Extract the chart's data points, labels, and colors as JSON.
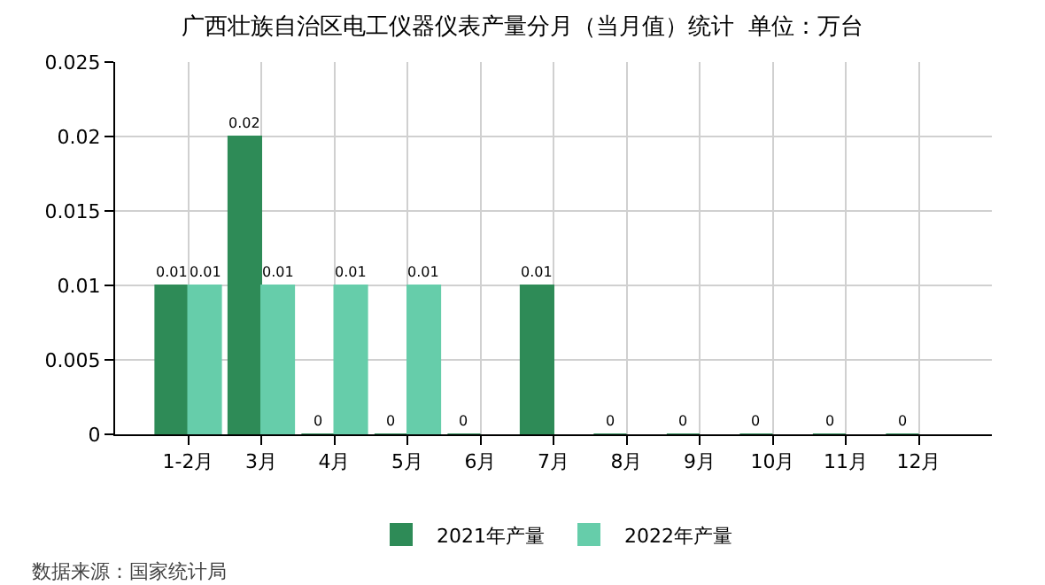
{
  "chart_data": {
    "type": "bar",
    "title": "广西壮族自治区电工仪器仪表产量分月（当月值）统计  单位：万台",
    "categories": [
      "1-2月",
      "3月",
      "4月",
      "5月",
      "6月",
      "7月",
      "8月",
      "9月",
      "10月",
      "11月",
      "12月"
    ],
    "series": [
      {
        "name": "2021年产量",
        "color": "#2e8b57",
        "values": [
          0.01,
          0.02,
          0,
          0,
          0,
          0.01,
          0,
          0,
          0,
          0,
          0
        ]
      },
      {
        "name": "2022年产量",
        "color": "#66cdaa",
        "values": [
          0.01,
          0.01,
          0.01,
          0.01,
          null,
          null,
          null,
          null,
          null,
          null,
          null
        ]
      }
    ],
    "ylim": [
      0,
      0.025
    ],
    "yticks": [
      0,
      0.005,
      0.01,
      0.015,
      0.02,
      0.025
    ],
    "grid": true,
    "legend": "bottom",
    "data_labels": true,
    "annotations": [
      "数据来源：国家统计局"
    ]
  }
}
